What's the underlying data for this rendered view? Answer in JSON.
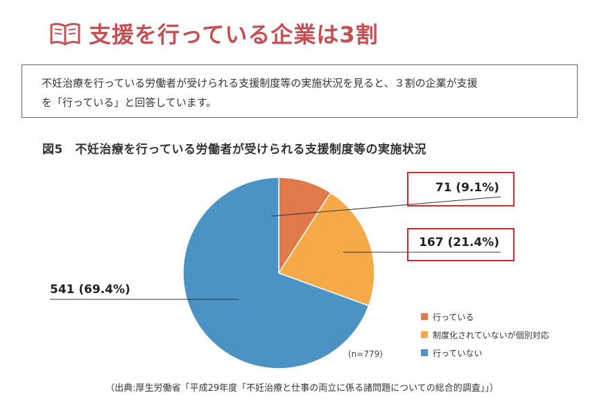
{
  "header": {
    "title": "支援を行っている企業は3割",
    "icon": "open-book-icon",
    "accent_color": "#c64f54"
  },
  "description": {
    "line1": "不妊治療を行っている労働者が受けられる支援制度等の実施状況を見ると、３割の企業が支援",
    "line2": "を「行っている」と回答しています。"
  },
  "figure": {
    "title": "図5　不妊治療を行っている労働者が受けられる支援制度等の実施状況",
    "source": "（出典:厚生労働省「平成29年度「不妊治療と仕事の両立に係る諸問題についての総合的調査」」）"
  },
  "chart_data": {
    "type": "pie",
    "title": "図5　不妊治療を行っている労働者が受けられる支援制度等の実施状況",
    "total_label": "(n=779)",
    "slices": [
      {
        "name": "行っている",
        "value": 71,
        "percent": 9.1,
        "label": "71 (9.1%)",
        "color": "#e07a4a",
        "highlighted": true
      },
      {
        "name": "制度化されていないが個別対応",
        "value": 167,
        "percent": 21.4,
        "label": "167 (21.4%)",
        "color": "#f5a947",
        "highlighted": true
      },
      {
        "name": "行っていない",
        "value": 541,
        "percent": 69.4,
        "label": "541 (69.4%)",
        "color": "#4b93c4",
        "highlighted": false
      }
    ],
    "legend_position": "bottom-right",
    "highlight_color": "#d9252c"
  }
}
